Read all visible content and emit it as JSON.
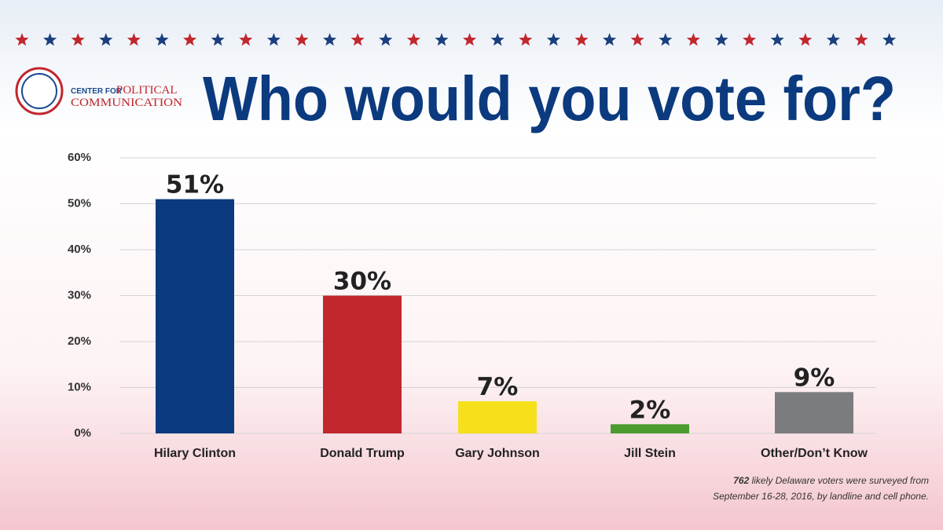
{
  "chart_data": {
    "type": "bar",
    "title": "Who would you vote for?",
    "logo": {
      "line1a": "CENTER FOR",
      "line1b": "POLITICAL",
      "line2": "COMMUNICATION"
    },
    "categories": [
      "Hilary Clinton",
      "Donald Trump",
      "Gary Johnson",
      "Jill Stein",
      "Other/Don’t Know"
    ],
    "values": [
      51,
      30,
      7,
      2,
      9
    ],
    "value_labels": [
      "51%",
      "30%",
      "7%",
      "2%",
      "9%"
    ],
    "colors": [
      "#0b3a7e",
      "#c1272d",
      "#f6e01c",
      "#4b9b2f",
      "#7b7c7e"
    ],
    "ylim": [
      0,
      60
    ],
    "yticks": [
      {
        "value": 0,
        "label": "0%"
      },
      {
        "value": 10,
        "label": "10%"
      },
      {
        "value": 20,
        "label": "20%"
      },
      {
        "value": 30,
        "label": "30%"
      },
      {
        "value": 40,
        "label": "40%"
      },
      {
        "value": 50,
        "label": "50%"
      },
      {
        "value": 60,
        "label": "60%"
      }
    ],
    "grid": true,
    "note_count": "762",
    "note_line1": " likely Delaware voters were surveyed from",
    "note_line2": "September 16-28, 2016, by landline and cell phone."
  }
}
